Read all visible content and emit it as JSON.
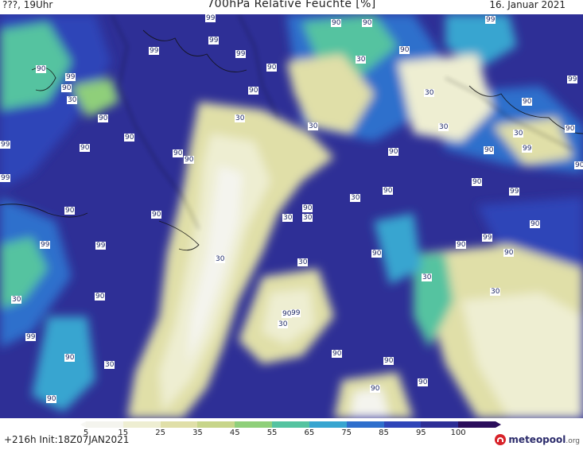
{
  "header": {
    "left_text": "???, 19Uhr",
    "title": "700hPa Relative Feuchte [%]",
    "date": "16. Januar 2021"
  },
  "legend": {
    "tick_values": [
      "5",
      "15",
      "25",
      "35",
      "45",
      "55",
      "65",
      "75",
      "85",
      "95",
      "100"
    ],
    "colors": [
      "#f4f4ee",
      "#eeeed2",
      "#e0dfa8",
      "#c7d58a",
      "#8fcf7a",
      "#55c3a0",
      "#38a5d0",
      "#2f6fcc",
      "#2f45b8",
      "#2e2f96",
      "#2b0e5c"
    ]
  },
  "footer": {
    "run_info": "+216h  Init:18Z07JAN2021",
    "logo_text": "meteopool",
    "logo_suffix": ".org"
  },
  "map_labels": [
    "99",
    "90",
    "90",
    "99",
    "99",
    "90",
    "99",
    "99",
    "90",
    "30",
    "90",
    "99",
    "99",
    "90",
    "90",
    "30",
    "90",
    "30",
    "30",
    "90",
    "90",
    "30",
    "90",
    "90",
    "99",
    "30",
    "30",
    "90",
    "30",
    "90",
    "30",
    "99",
    "90",
    "90",
    "90",
    "90",
    "99",
    "90",
    "90",
    "99",
    "90",
    "99",
    "90",
    "99",
    "30",
    "30",
    "30",
    "90",
    "30",
    "90",
    "99",
    "90",
    "30",
    "90",
    "90",
    "90",
    "90",
    "90",
    "30",
    "30",
    "30",
    "90",
    "99",
    "99",
    "90",
    "90",
    "90"
  ]
}
